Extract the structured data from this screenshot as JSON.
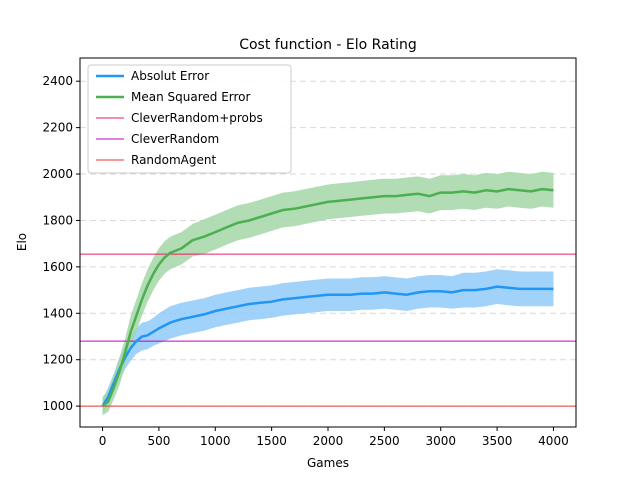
{
  "chart_data": {
    "type": "line",
    "title": "Cost function - Elo Rating",
    "xlabel": "Games",
    "ylabel": "Elo",
    "xlim": [
      -200,
      4200
    ],
    "ylim": [
      910,
      2500
    ],
    "x_ticks": [
      0,
      500,
      1000,
      1500,
      2000,
      2500,
      3000,
      3500,
      4000
    ],
    "y_ticks": [
      1000,
      1200,
      1400,
      1600,
      1800,
      2000,
      2200,
      2400
    ],
    "grid": "horizontal dashed",
    "legend_position": "top-left",
    "series": [
      {
        "name": "Absolut Error",
        "color": "#2196f3",
        "band_color": "#90caf9",
        "x": [
          0,
          50,
          100,
          150,
          200,
          250,
          300,
          350,
          400,
          450,
          500,
          600,
          700,
          800,
          900,
          1000,
          1100,
          1200,
          1300,
          1400,
          1500,
          1600,
          1700,
          1800,
          1900,
          2000,
          2100,
          2200,
          2300,
          2400,
          2500,
          2600,
          2700,
          2800,
          2900,
          3000,
          3100,
          3200,
          3300,
          3400,
          3500,
          3600,
          3700,
          3800,
          3900,
          4000
        ],
        "mean": [
          1000,
          1040,
          1100,
          1160,
          1210,
          1250,
          1280,
          1300,
          1305,
          1320,
          1335,
          1360,
          1375,
          1385,
          1395,
          1410,
          1420,
          1430,
          1440,
          1445,
          1450,
          1460,
          1465,
          1470,
          1475,
          1480,
          1480,
          1480,
          1485,
          1485,
          1490,
          1485,
          1480,
          1490,
          1495,
          1495,
          1490,
          1500,
          1500,
          1505,
          1515,
          1510,
          1505,
          1505,
          1505,
          1505
        ],
        "lower": [
          970,
          1000,
          1060,
          1110,
          1160,
          1195,
          1225,
          1240,
          1245,
          1260,
          1270,
          1290,
          1305,
          1315,
          1325,
          1340,
          1350,
          1360,
          1370,
          1375,
          1380,
          1390,
          1395,
          1400,
          1405,
          1410,
          1410,
          1410,
          1415,
          1415,
          1420,
          1415,
          1410,
          1420,
          1425,
          1425,
          1420,
          1425,
          1425,
          1430,
          1440,
          1435,
          1430,
          1430,
          1430,
          1430
        ],
        "upper": [
          1030,
          1080,
          1140,
          1210,
          1260,
          1305,
          1335,
          1360,
          1365,
          1380,
          1400,
          1430,
          1445,
          1455,
          1465,
          1480,
          1490,
          1500,
          1510,
          1515,
          1520,
          1530,
          1535,
          1540,
          1545,
          1550,
          1550,
          1550,
          1555,
          1555,
          1560,
          1555,
          1550,
          1560,
          1565,
          1565,
          1560,
          1575,
          1575,
          1580,
          1590,
          1585,
          1580,
          1580,
          1580,
          1580
        ]
      },
      {
        "name": "Mean Squared Error",
        "color": "#4caf50",
        "band_color": "#a5d6a7",
        "x": [
          0,
          50,
          100,
          150,
          200,
          250,
          300,
          350,
          400,
          450,
          500,
          550,
          600,
          650,
          700,
          800,
          900,
          1000,
          1100,
          1200,
          1300,
          1400,
          1500,
          1600,
          1700,
          1800,
          1900,
          2000,
          2100,
          2200,
          2300,
          2400,
          2500,
          2600,
          2700,
          2800,
          2900,
          3000,
          3100,
          3200,
          3300,
          3400,
          3500,
          3600,
          3700,
          3800,
          3900,
          4000
        ],
        "mean": [
          1000,
          1020,
          1080,
          1150,
          1230,
          1320,
          1390,
          1460,
          1520,
          1570,
          1610,
          1640,
          1660,
          1670,
          1680,
          1715,
          1730,
          1750,
          1770,
          1790,
          1800,
          1815,
          1830,
          1845,
          1850,
          1860,
          1870,
          1880,
          1885,
          1890,
          1895,
          1900,
          1905,
          1905,
          1910,
          1915,
          1905,
          1920,
          1920,
          1925,
          1920,
          1930,
          1925,
          1935,
          1930,
          1925,
          1935,
          1930
        ],
        "lower": [
          960,
          975,
          1030,
          1090,
          1170,
          1250,
          1320,
          1390,
          1450,
          1500,
          1540,
          1570,
          1590,
          1600,
          1610,
          1645,
          1655,
          1675,
          1695,
          1715,
          1725,
          1740,
          1755,
          1770,
          1775,
          1785,
          1795,
          1805,
          1810,
          1815,
          1820,
          1825,
          1830,
          1830,
          1835,
          1840,
          1830,
          1845,
          1845,
          1850,
          1845,
          1855,
          1850,
          1860,
          1855,
          1850,
          1860,
          1855
        ],
        "upper": [
          1040,
          1065,
          1130,
          1210,
          1290,
          1390,
          1460,
          1530,
          1590,
          1640,
          1680,
          1710,
          1730,
          1740,
          1750,
          1785,
          1805,
          1825,
          1845,
          1865,
          1875,
          1890,
          1905,
          1920,
          1925,
          1935,
          1945,
          1955,
          1960,
          1965,
          1970,
          1975,
          1980,
          1980,
          1985,
          1990,
          1980,
          1995,
          1995,
          2000,
          1995,
          2005,
          2000,
          2010,
          2005,
          2000,
          2010,
          2005
        ]
      }
    ],
    "reference_lines": [
      {
        "name": "CleverRandom+probs",
        "y": 1655,
        "color": "#e91e63"
      },
      {
        "name": "CleverRandom",
        "y": 1280,
        "color": "#c000c0"
      },
      {
        "name": "RandomAgent",
        "y": 1000,
        "color": "#e53935"
      }
    ]
  }
}
